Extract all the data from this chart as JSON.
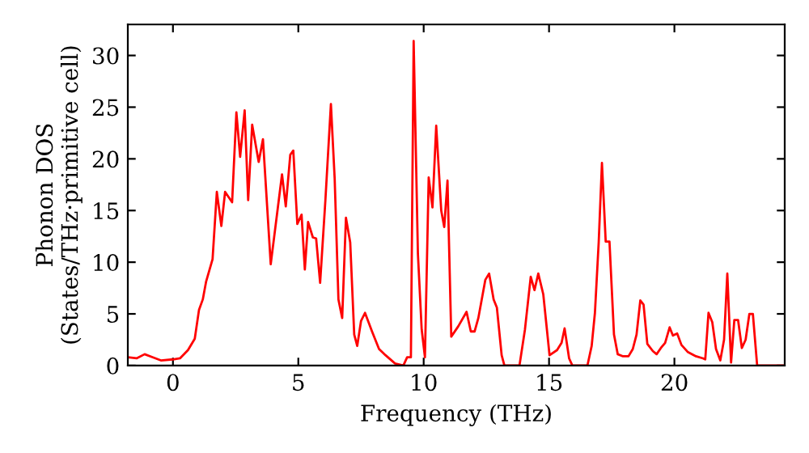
{
  "chart_data": {
    "type": "line",
    "xlabel": "Frequency (THz)",
    "ylabel": "Phonon DOS\n(States/THz·primitive cell)",
    "xlim": [
      -1.8,
      24.4
    ],
    "ylim": [
      0,
      33
    ],
    "xticks": [
      0,
      5,
      10,
      15,
      20
    ],
    "yticks": [
      0,
      5,
      10,
      15,
      20,
      25,
      30
    ],
    "marker": "none",
    "line_style": "solid",
    "series": [
      {
        "color": "#ff0000",
        "x": [
          -1.8,
          -1.45,
          -1.13,
          -0.8,
          -0.48,
          0,
          0.28,
          0.6,
          0.87,
          1.04,
          1.19,
          1.32,
          1.58,
          1.75,
          1.93,
          2.08,
          2.36,
          2.53,
          2.68,
          2.86,
          3.0,
          3.16,
          3.42,
          3.59,
          3.9,
          4.35,
          4.5,
          4.68,
          4.8,
          4.96,
          5.13,
          5.26,
          5.39,
          5.58,
          5.71,
          5.87,
          6.08,
          6.3,
          6.45,
          6.6,
          6.75,
          6.9,
          7.07,
          7.23,
          7.35,
          7.5,
          7.66,
          7.94,
          8.22,
          8.48,
          8.86,
          9.19,
          9.34,
          9.49,
          9.6,
          9.77,
          9.92,
          10.05,
          10.2,
          10.35,
          10.5,
          10.7,
          10.82,
          10.95,
          11.1,
          11.38,
          11.71,
          11.88,
          12.03,
          12.18,
          12.46,
          12.61,
          12.79,
          12.92,
          13.11,
          13.22,
          13.82,
          14.04,
          14.27,
          14.42,
          14.57,
          14.77,
          15.02,
          15.32,
          15.5,
          15.62,
          15.8,
          15.93,
          16.53,
          16.7,
          16.83,
          16.98,
          17.11,
          17.26,
          17.41,
          17.59,
          17.74,
          17.95,
          18.17,
          18.34,
          18.49,
          18.64,
          18.77,
          18.92,
          19.14,
          19.29,
          19.46,
          19.63,
          19.81,
          19.94,
          20.11,
          20.28,
          20.54,
          20.86,
          21.14,
          21.23,
          21.36,
          21.51,
          21.66,
          21.83,
          21.98,
          22.11,
          22.26,
          22.39,
          22.54,
          22.69,
          22.84,
          22.99,
          23.13,
          23.3,
          24.4
        ],
        "values": [
          0.8,
          0.7,
          1.1,
          0.8,
          0.5,
          0.6,
          0.7,
          1.5,
          2.6,
          5.4,
          6.4,
          8.1,
          10.3,
          16.8,
          13.5,
          16.8,
          15.8,
          24.5,
          20.2,
          24.7,
          16,
          23.3,
          19.7,
          21.9,
          9.8,
          18.5,
          15.4,
          20.4,
          20.8,
          13.7,
          14.6,
          9.3,
          13.9,
          12.4,
          12.3,
          8,
          16,
          25.3,
          18.1,
          6.4,
          4.6,
          14.3,
          11.9,
          3.0,
          1.9,
          4.3,
          5.1,
          3.3,
          1.6,
          1.0,
          0.2,
          0,
          0.8,
          0.8,
          31.4,
          10.8,
          3.5,
          0.8,
          18.2,
          15.3,
          23.2,
          15,
          13.4,
          17.9,
          2.8,
          3.8,
          5.2,
          3.3,
          3.3,
          4.6,
          8.3,
          8.9,
          6.4,
          5.6,
          1.0,
          0,
          0,
          3.5,
          8.6,
          7.3,
          8.9,
          6.9,
          1.0,
          1.5,
          2.2,
          3.6,
          0.7,
          0,
          0,
          1.9,
          5.1,
          11.9,
          19.6,
          12.0,
          12.0,
          3.0,
          1.1,
          0.9,
          0.9,
          1.6,
          3.0,
          6.3,
          5.9,
          2.1,
          1.4,
          1.1,
          1.7,
          2.2,
          3.7,
          2.9,
          3.1,
          2.0,
          1.3,
          0.9,
          0.7,
          0.6,
          5.1,
          4.2,
          1.6,
          0.5,
          2.5,
          8.9,
          0.3,
          4.4,
          4.4,
          1.7,
          2.5,
          5.0,
          5.0,
          0,
          0
        ]
      }
    ]
  }
}
